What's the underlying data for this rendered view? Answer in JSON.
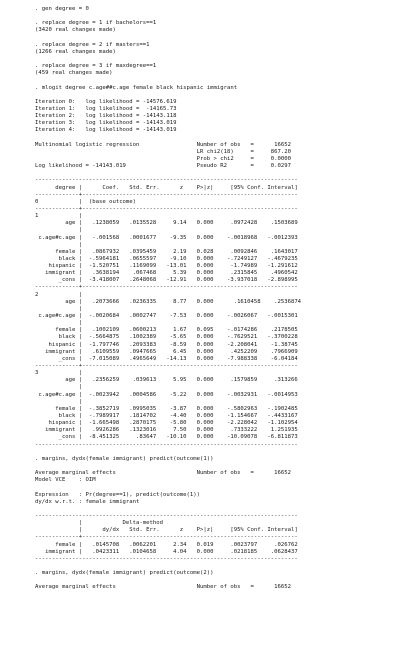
{
  "log": [
    ". gen degree = 0",
    "",
    ". replace degree = 1 if bachelors==1",
    "(3420 real changes made)",
    "",
    ". replace degree = 2 if masters==1",
    "(1266 real changes made)",
    "",
    ". replace degree = 3 if maxdegree==1",
    "(459 real changes made)",
    "",
    ". mlogit degree c.age##c.age female black hispanic immigrant",
    "",
    "Iteration 0:   log likelihood = -14576.619",
    "Iteration 1:   log likelihood =  -14165.73",
    "Iteration 2:   log likelihood = -14143.118",
    "Iteration 3:   log likelihood = -14143.019",
    "Iteration 4:   log likelihood = -14143.019",
    "",
    "Multinomial logistic regression                 Number of obs   =      16652",
    "                                                LR chi2(18)     =     867.20",
    "                                                Prob > chi2     =     0.0000",
    "Log likelihood = -14143.019                     Pseudo R2       =     0.0297",
    "",
    "------------------------------------------------------------------------------",
    "      degree |      Coef.   Std. Err.      z    P>|z|     [95% Conf. Interval]",
    "-------------+----------------------------------------------------------------",
    "0            |  (base outcome)",
    "-------------+----------------------------------------------------------------",
    "1            |",
    "         age |   .1238059   .0135528     9.14   0.000     .0972428    .1503689",
    "             |",
    " c.age#c.age |   -.001568   .0001677    -9.35   0.000    -.0018968   -.0012393",
    "             |",
    "      female |   .0867932   .0395459     2.19   0.028     .0092846    .1643017",
    "       black |  -.5964181   .0655597    -9.10   0.000    -.7249127   -.4679235",
    "    hispanic |  -1.520751   .1169099   -13.01   0.000     -1.74989   -1.291612",
    "   immigrant |   .3638194    .067468     5.39   0.000     .2315845    .4960542",
    "       _cons |  -3.418007   .2648068   -12.91   0.000    -3.937018   -2.898995",
    "-------------+----------------------------------------------------------------",
    "2            |",
    "         age |   .2073666   .0236335     8.77   0.000      .1610458    .2536874",
    "             |",
    " c.age#c.age |  -.0020684   .0002747    -7.53   0.000    -.0026067   -.0015301",
    "             |",
    "      female |   .1002109   .0600213     1.67   0.095    -.0174286    .2178505",
    "       black |  -.5664875   .1002389    -5.65   0.000    -.7629521   -.3700228",
    "    hispanic |  -1.797746   .2093383    -8.59   0.000    -2.208041    -1.38745",
    "   immigrant |   .6109559   .0947665     6.45   0.000     .4252209    .7966909",
    "       _cons |  -7.015089   .4965649   -14.13   0.000    -7.988338    -6.04184",
    "-------------+----------------------------------------------------------------",
    "3            |",
    "         age |   .2356259    .039613     5.95   0.000     .1579859     .313266",
    "             |",
    " c.age#c.age |  -.0023942   .0004586    -5.22   0.000    -.0032931   -.0014953",
    "             |",
    "      female |  -.3852719   .0995035    -3.87   0.000    -.5802963   -.1902485",
    "       black |  -.7989917   .1814702    -4.40   0.000    -1.154667   -.4433167",
    "    hispanic |  -1.665498   .2870175    -5.80   0.000    -2.228042   -1.102954",
    "   immigrant |   .9926286   .1323016     7.50   0.000     .7333222    1.251935",
    "       _cons |  -8.451325     .83647   -10.10   0.000    -10.09078   -6.811873",
    "------------------------------------------------------------------------------",
    "",
    ". margins, dydx(female immigrant) predict(outcome(1))",
    "",
    "Average marginal effects                        Number of obs   =      16652",
    "Model VCE    : OIM",
    "",
    "Expression   : Pr(degree==1), predict(outcome(1))",
    "dy/dx w.r.t. : female immigrant",
    "",
    "------------------------------------------------------------------------------",
    "             |            Delta-method",
    "             |      dy/dx   Std. Err.      z    P>|z|     [95% Conf. Interval]",
    "-------------+----------------------------------------------------------------",
    "      female |   .0145708   .0062201     2.34   0.019     .0023797     .026762",
    "   immigrant |   .0423311   .0104658     4.04   0.000     .0218185    .0628437",
    "------------------------------------------------------------------------------",
    "",
    ". margins, dydx(female immigrant) predict(outcome(2))",
    "",
    "Average marginal effects                        Number of obs   =      16652"
  ]
}
